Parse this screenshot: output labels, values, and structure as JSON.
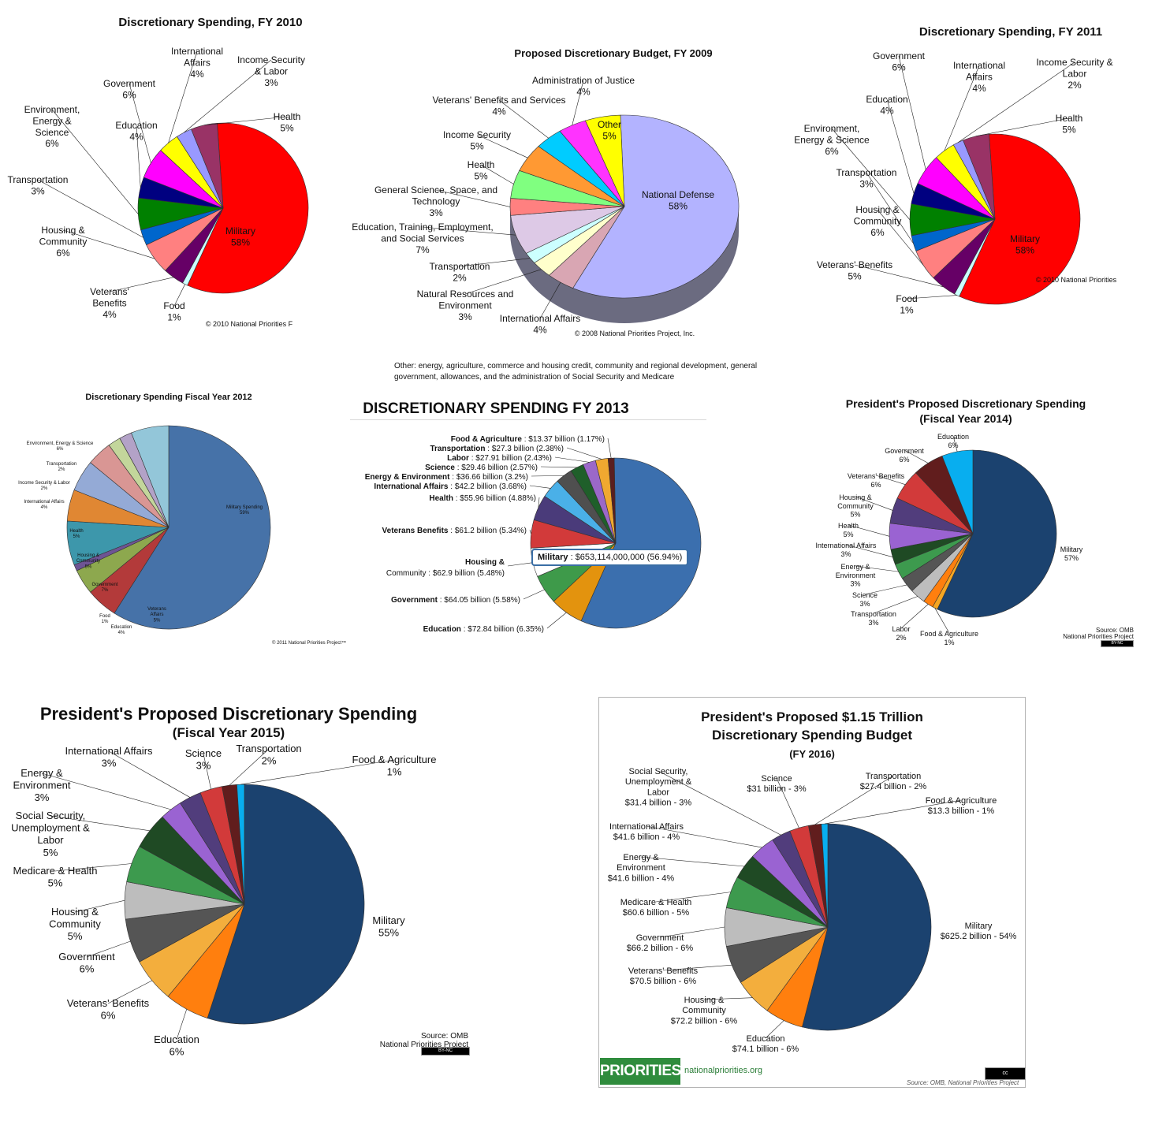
{
  "chart_data": [
    {
      "id": "fy2010",
      "type": "pie",
      "title": "Discretionary Spending, FY 2010",
      "credit": "© 2010 National Priorities F",
      "slices": [
        {
          "label": "Military",
          "pct": "58%",
          "value": 58,
          "color": "#ff0000"
        },
        {
          "label": "Food",
          "pct": "1%",
          "value": 1,
          "color": "#ccffff"
        },
        {
          "label": "Veterans'\nBenefits",
          "pct": "4%",
          "value": 4,
          "color": "#660066"
        },
        {
          "label": "Housing &\nCommunity",
          "pct": "6%",
          "value": 6,
          "color": "#ff8080"
        },
        {
          "label": "Transportation",
          "pct": "3%",
          "value": 3,
          "color": "#0066cc"
        },
        {
          "label": "Environment,\nEnergy &\nScience",
          "pct": "6%",
          "value": 6,
          "color": "#008000"
        },
        {
          "label": "Education",
          "pct": "4%",
          "value": 4,
          "color": "#000080"
        },
        {
          "label": "Government",
          "pct": "6%",
          "value": 6,
          "color": "#ff00ff"
        },
        {
          "label": "International\nAffairs",
          "pct": "4%",
          "value": 4,
          "color": "#ffff00"
        },
        {
          "label": "Income Security\n& Labor",
          "pct": "3%",
          "value": 3,
          "color": "#9999ff"
        },
        {
          "label": "Health",
          "pct": "5%",
          "value": 5,
          "color": "#993366"
        }
      ]
    },
    {
      "id": "fy2009",
      "type": "pie",
      "title": "Proposed Discretionary Budget, FY 2009",
      "credit": "© 2008 National Priorities Project, Inc.",
      "footnote_line1": "Other: energy, agriculture, commerce and housing credit, community and regional development, general",
      "footnote_line2": "government, allowances, and the administration of Social Security and Medicare",
      "slices": [
        {
          "label": "National Defense",
          "pct": "58%",
          "value": 58,
          "color": "#b3b3ff"
        },
        {
          "label": "International Affairs",
          "pct": "4%",
          "value": 4,
          "color": "#d9a6b3"
        },
        {
          "label": "Natural Resources and\nEnvironment",
          "pct": "3%",
          "value": 3,
          "color": "#ffffcc"
        },
        {
          "label": "Transportation",
          "pct": "2%",
          "value": 2,
          "color": "#ccffff"
        },
        {
          "label": "Education, Training, Employment,\nand Social Services",
          "pct": "7%",
          "value": 7,
          "color": "#ddc9e6"
        },
        {
          "label": "General Science, Space, and\nTechnology",
          "pct": "3%",
          "value": 3,
          "color": "#ff8080"
        },
        {
          "label": "Health",
          "pct": "5%",
          "value": 5,
          "color": "#80ff80"
        },
        {
          "label": "Income Security",
          "pct": "5%",
          "value": 5,
          "color": "#ff9933"
        },
        {
          "label": "Veterans' Benefits and Services",
          "pct": "4%",
          "value": 4,
          "color": "#00ccff"
        },
        {
          "label": "Administration of Justice",
          "pct": "4%",
          "value": 4,
          "color": "#ff33ff"
        },
        {
          "label": "Other",
          "pct": "5%",
          "value": 5,
          "color": "#ffff00"
        }
      ]
    },
    {
      "id": "fy2011",
      "type": "pie",
      "title": "Discretionary Spending, FY 2011",
      "credit": "© 2010 National Priorities",
      "slices": [
        {
          "label": "Military",
          "pct": "58%",
          "value": 58,
          "color": "#ff0000"
        },
        {
          "label": "Food",
          "pct": "1%",
          "value": 1,
          "color": "#ccffff"
        },
        {
          "label": "Veterans' Benefits",
          "pct": "5%",
          "value": 5,
          "color": "#660066"
        },
        {
          "label": "Housing &\nCommunity",
          "pct": "6%",
          "value": 6,
          "color": "#ff8080"
        },
        {
          "label": "Transportation",
          "pct": "3%",
          "value": 3,
          "color": "#0066cc"
        },
        {
          "label": "Environment,\nEnergy & Science",
          "pct": "6%",
          "value": 6,
          "color": "#008000"
        },
        {
          "label": "Education",
          "pct": "4%",
          "value": 4,
          "color": "#000080"
        },
        {
          "label": "Government",
          "pct": "6%",
          "value": 6,
          "color": "#ff00ff"
        },
        {
          "label": "International\nAffairs",
          "pct": "4%",
          "value": 4,
          "color": "#ffff00"
        },
        {
          "label": "Income Security &\nLabor",
          "pct": "2%",
          "value": 2,
          "color": "#9999ff"
        },
        {
          "label": "Health",
          "pct": "5%",
          "value": 5,
          "color": "#993366"
        }
      ]
    },
    {
      "id": "fy2012",
      "type": "pie",
      "title": "Discretionary Spending Fiscal Year 2012",
      "credit": "© 2011 National Priorities Project™",
      "slices": [
        {
          "label": "Military Spending",
          "pct": "59%",
          "value": 59,
          "color": "#4672a8"
        },
        {
          "label": "Veterans\nAffairs",
          "pct": "5%",
          "value": 5,
          "color": "#b33a3a"
        },
        {
          "label": "Education",
          "pct": "4%",
          "value": 4,
          "color": "#8da84e"
        },
        {
          "label": "Food",
          "pct": "1%",
          "value": 1,
          "color": "#6e5494"
        },
        {
          "label": "Government",
          "pct": "7%",
          "value": 7,
          "color": "#3d97ab"
        },
        {
          "label": "Housing &\nCommunity",
          "pct": "5%",
          "value": 5,
          "color": "#e08733"
        },
        {
          "label": "Health",
          "pct": "5%",
          "value": 5,
          "color": "#94aad6"
        },
        {
          "label": "International Affairs",
          "pct": "4%",
          "value": 4,
          "color": "#d99694"
        },
        {
          "label": "Income Security & Labor",
          "pct": "2%",
          "value": 2,
          "color": "#c3d69b"
        },
        {
          "label": "Transportation",
          "pct": "2%",
          "value": 2,
          "color": "#b3a2c7"
        },
        {
          "label": "Environment, Energy & Science",
          "pct": "6%",
          "value": 6,
          "color": "#93c6d9"
        }
      ]
    },
    {
      "id": "fy2013",
      "type": "pie",
      "title": "DISCRETIONARY SPENDING FY 2013",
      "tooltip_label": "Military",
      "tooltip_value": ": $653,114,000,000 (56.94%)",
      "slices": [
        {
          "label": "Military",
          "detail": "",
          "value": 56.94,
          "color": "#3b6fae"
        },
        {
          "label": "Education",
          "detail": ": $72.84 billion (6.35%)",
          "value": 6.35,
          "color": "#e3930e"
        },
        {
          "label": "Government",
          "detail": ": $64.05 billion (5.58%)",
          "value": 5.58,
          "color": "#3e9a4a"
        },
        {
          "label": "Housing &",
          "detail": "Community : $62.9 billion (5.48%)",
          "value": 5.48,
          "color": "#ffffff"
        },
        {
          "label": "Veterans Benefits",
          "detail": ": $61.2 billion (5.34%)",
          "value": 5.34,
          "color": "#d23a3a"
        },
        {
          "label": "Health",
          "detail": ": $55.96 billion (4.88%)",
          "value": 4.88,
          "color": "#4a3b7a"
        },
        {
          "label": "International Affairs",
          "detail": ": $42.2 billion (3.68%)",
          "value": 3.68,
          "color": "#4ab0e8"
        },
        {
          "label": "Energy & Environment",
          "detail": ": $36.66 billion (3.2%)",
          "value": 3.2,
          "color": "#4f4f4f"
        },
        {
          "label": "Science",
          "detail": ": $29.46 billion (2.57%)",
          "value": 2.57,
          "color": "#1f5f2a"
        },
        {
          "label": "Labor",
          "detail": ": $27.91 billion (2.43%)",
          "value": 2.43,
          "color": "#9b68c9"
        },
        {
          "label": "Transportation",
          "detail": ": $27.3 billion (2.38%)",
          "value": 2.38,
          "color": "#f0a830"
        },
        {
          "label": "Food & Agriculture",
          "detail": ": $13.37 billion (1.17%)",
          "value": 1.17,
          "color": "#5a1f1f"
        }
      ]
    },
    {
      "id": "fy2014",
      "type": "pie",
      "title_line1": "President's Proposed Discretionary  Spending",
      "title_line2": "(Fiscal Year 2014)",
      "source_line1": "Source: OMB",
      "source_line2": "National Priorities Project",
      "cc": "BY-NC",
      "slices": [
        {
          "label": "Military",
          "pct": "57%",
          "value": 57,
          "color": "#1b426f"
        },
        {
          "label": "Food & Agriculture",
          "pct": "1%",
          "value": 1,
          "color": "#f5a623"
        },
        {
          "label": "Labor",
          "pct": "2%",
          "value": 2,
          "color": "#ff7f0e"
        },
        {
          "label": "Transportation",
          "pct": "3%",
          "value": 3,
          "color": "#bdbdbd"
        },
        {
          "label": "Science",
          "pct": "3%",
          "value": 3,
          "color": "#555555"
        },
        {
          "label": "Energy &\nEnvironment",
          "pct": "3%",
          "value": 3,
          "color": "#3d9a4e"
        },
        {
          "label": "International  Affairs",
          "pct": "3%",
          "value": 3,
          "color": "#1f4a24"
        },
        {
          "label": "Health",
          "pct": "5%",
          "value": 5,
          "color": "#9a63d2"
        },
        {
          "label": "Housing &\nCommunity",
          "pct": "5%",
          "value": 5,
          "color": "#513d7c"
        },
        {
          "label": "Veterans'  Benefits",
          "pct": "6%",
          "value": 6,
          "color": "#d23a3a"
        },
        {
          "label": "Government",
          "pct": "6%",
          "value": 6,
          "color": "#611d1d"
        },
        {
          "label": "Education",
          "pct": "6%",
          "value": 6,
          "color": "#08aeef"
        }
      ]
    },
    {
      "id": "fy2015",
      "type": "pie",
      "title_line1": "President's Proposed Discretionary Spending",
      "title_line2": "(Fiscal Year 2015)",
      "source_line1": "Source: OMB",
      "source_line2": "National Priorities Project",
      "cc": "BY-NC",
      "slices": [
        {
          "label": "Military",
          "pct": "55%",
          "value": 55,
          "color": "#1b426f"
        },
        {
          "label": "Education",
          "pct": "6%",
          "value": 6,
          "color": "#ff7f0e"
        },
        {
          "label": "Veterans'  Benefits",
          "pct": "6%",
          "value": 6,
          "color": "#f3ae3d"
        },
        {
          "label": "Government",
          "pct": "6%",
          "value": 6,
          "color": "#555555"
        },
        {
          "label": "Housing  &\nCommunity",
          "pct": "5%",
          "value": 5,
          "color": "#bdbdbd"
        },
        {
          "label": "Medicare  & Health",
          "pct": "5%",
          "value": 5,
          "color": "#3d9a4e"
        },
        {
          "label": "Social Security,\nUnemployment  &\nLabor",
          "pct": "5%",
          "value": 5,
          "color": "#1f4a24"
        },
        {
          "label": "Energy  &\nEnvironment",
          "pct": "3%",
          "value": 3,
          "color": "#9a63d2"
        },
        {
          "label": "International  Affairs",
          "pct": "3%",
          "value": 3,
          "color": "#513d7c"
        },
        {
          "label": "Science",
          "pct": "3%",
          "value": 3,
          "color": "#d23a3a"
        },
        {
          "label": "Transportation",
          "pct": "2%",
          "value": 2,
          "color": "#611d1d"
        },
        {
          "label": "Food  & Agriculture",
          "pct": "1%",
          "value": 1,
          "color": "#08aeef"
        }
      ]
    },
    {
      "id": "fy2016",
      "type": "pie",
      "title_line1": "President's Proposed $1.15 Trillion",
      "title_line2": "Discretionary Spending Budget",
      "title_line3": "(FY 2016)",
      "logo": "PRIORITIES",
      "url": "nationalpriorities.org",
      "source": "Source: OMB, National Priorities Project",
      "cc": "cc",
      "slices": [
        {
          "label": "Military",
          "pct": "$625.2 billion - 54%",
          "value": 54,
          "color": "#1b426f"
        },
        {
          "label": "Education",
          "pct": "$74.1 billion - 6%",
          "value": 6,
          "color": "#ff7f0e"
        },
        {
          "label": "Housing  &\nCommunity",
          "pct": "$72.2 billion - 6%",
          "value": 6,
          "color": "#f3ae3d"
        },
        {
          "label": "Veterans'  Benefits",
          "pct": "$70.5 billion - 6%",
          "value": 6,
          "color": "#555555"
        },
        {
          "label": "Government",
          "pct": "$66.2 billion - 6%",
          "value": 6,
          "color": "#bdbdbd"
        },
        {
          "label": "Medicare  & Health",
          "pct": "$60.6 billion - 5%",
          "value": 5,
          "color": "#3d9a4e"
        },
        {
          "label": "Energy  &\nEnvironment",
          "pct": "$41.6 billion - 4%",
          "value": 4,
          "color": "#1f4a24"
        },
        {
          "label": "International  Affairs",
          "pct": "$41.6 billion - 4%",
          "value": 4,
          "color": "#9a63d2"
        },
        {
          "label": "Social Security,\nUnemployment  &\nLabor",
          "pct": "$31.4 billion - 3%",
          "value": 3,
          "color": "#513d7c"
        },
        {
          "label": "Science",
          "pct": "$31 billion - 3%",
          "value": 3,
          "color": "#d23a3a"
        },
        {
          "label": "Transportation",
          "pct": "$27.4 billion - 2%",
          "value": 2,
          "color": "#611d1d"
        },
        {
          "label": "Food  & Agriculture",
          "pct": "$13.3 billion - 1%",
          "value": 1,
          "color": "#08aeef"
        }
      ]
    }
  ]
}
